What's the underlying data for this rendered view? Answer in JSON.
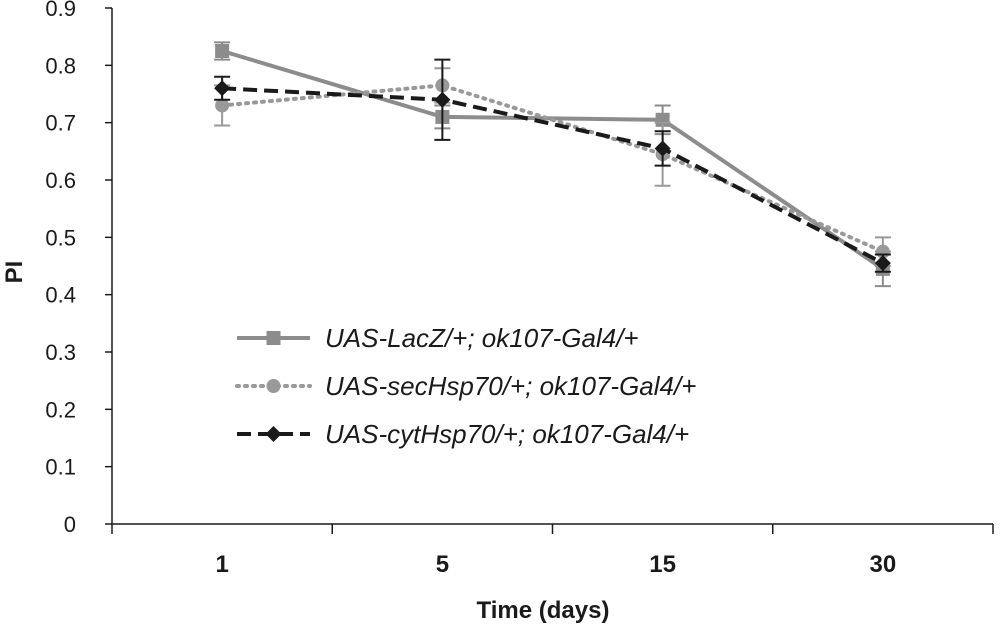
{
  "chart_data": {
    "type": "line",
    "categories": [
      "1",
      "5",
      "15",
      "30"
    ],
    "xlabel": "Time (days)",
    "ylabel": "PI",
    "ylim": [
      0,
      0.9
    ],
    "yticks": [
      "0",
      "0.1",
      "0.2",
      "0.3",
      "0.4",
      "0.5",
      "0.6",
      "0.7",
      "0.8",
      "0.9"
    ],
    "legend_position": "center-left",
    "grid": false,
    "series": [
      {
        "name": "UAS-LacZ/+; ok107-Gal4/+",
        "values": [
          0.825,
          0.71,
          0.705,
          0.445
        ],
        "errors": [
          0.015,
          0.02,
          0.025,
          0.03
        ],
        "color": "#8c8c8c",
        "line_style": "solid",
        "marker": "square"
      },
      {
        "name": "UAS-secHsp70/+; ok107-Gal4/+",
        "values": [
          0.73,
          0.765,
          0.645,
          0.475
        ],
        "errors": [
          0.035,
          0.03,
          0.055,
          0.025
        ],
        "color": "#999999",
        "line_style": "dotted",
        "marker": "circle"
      },
      {
        "name": "UAS-cytHsp70/+; ok107-Gal4/+",
        "values": [
          0.76,
          0.74,
          0.655,
          0.455
        ],
        "errors": [
          0.02,
          0.07,
          0.03,
          0.015
        ],
        "color": "#1a1a1a",
        "line_style": "dashed",
        "marker": "diamond"
      }
    ]
  }
}
